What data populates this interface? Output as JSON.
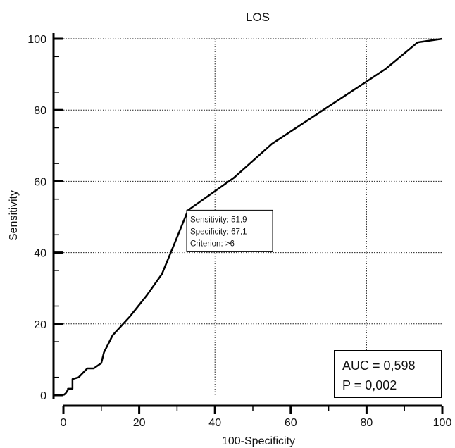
{
  "chart_data": {
    "type": "line",
    "title": "LOS",
    "xlabel": "100-Specificity",
    "ylabel": "Sensitivity",
    "xlim": [
      0,
      100
    ],
    "ylim": [
      0,
      100
    ],
    "x_ticks": [
      0,
      20,
      40,
      60,
      80,
      100
    ],
    "y_ticks": [
      0,
      20,
      40,
      60,
      80,
      100
    ],
    "x_ticklabels": [
      "0",
      "20",
      "40",
      "60",
      "80",
      "100"
    ],
    "y_ticklabels": [
      "0",
      "20",
      "40",
      "60",
      "80",
      "100"
    ],
    "grid_x": [
      40,
      80
    ],
    "grid_y": [
      20,
      40,
      60,
      80,
      100
    ],
    "series": [
      {
        "x": [
          0,
          0.6,
          1.2,
          1.2,
          2.4,
          2.4,
          4.0,
          6.3,
          8.0,
          10.0,
          10.7,
          13.0,
          17.5,
          22.0,
          26.0,
          29.5,
          32.9,
          45.0,
          55.0,
          70.0,
          85.0,
          93.5,
          100
        ],
        "y": [
          0,
          0.5,
          1.5,
          1.8,
          1.8,
          4.5,
          5.0,
          7.5,
          7.5,
          9.0,
          12.0,
          16.8,
          22.0,
          28.0,
          34.0,
          43.0,
          51.9,
          61.0,
          70.5,
          81.0,
          91.5,
          99.0,
          100
        ]
      }
    ],
    "annotation": {
      "x": 32.9,
      "y": 51.9,
      "lines": [
        "Sensitivity: 51,9",
        "Specificity: 67,1",
        "Criterion: >6"
      ]
    },
    "stats": {
      "auc": "AUC = 0,598",
      "p": "P = 0,002"
    },
    "grid": true,
    "legend": "none"
  }
}
